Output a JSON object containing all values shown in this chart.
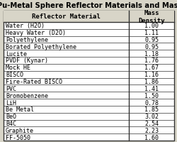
{
  "title": "st of Pu-Metal Sphere Reflector Materials and Mass Den",
  "col1_header": "Reflector Material",
  "col2_header": "Mass\nDensity",
  "rows": [
    [
      "Water (H2O)",
      "1.00"
    ],
    [
      "Heavy Water (D2O)",
      "1.11"
    ],
    [
      "Polyethylene",
      "0.95"
    ],
    [
      "Borated Polyethylene",
      "0.95"
    ],
    [
      "Lucite",
      "1.18"
    ],
    [
      "PVDF (Kynar)",
      "1.76"
    ],
    [
      "Mock HE",
      "1.67"
    ],
    [
      "BISCO",
      "1.16"
    ],
    [
      "Fire-Rated BISCO",
      "1.86"
    ],
    [
      "PVC",
      "1.41"
    ],
    [
      "Bromobenzene",
      "1.50"
    ],
    [
      "LiH",
      "0.78"
    ],
    [
      "Be Metal",
      "1.85"
    ],
    [
      "BeO",
      "3.02"
    ],
    [
      "B4C",
      "2.54"
    ],
    [
      "Graphite",
      "2.23"
    ],
    [
      "FF-5050",
      "1.60"
    ]
  ],
  "bg_color": "#d8d5c8",
  "table_bg": "#ffffff",
  "header_bg": "#d8d5c8",
  "border_color": "#333333",
  "font_family": "monospace",
  "header_fontsize": 6.5,
  "cell_fontsize": 6.0,
  "title_fontsize": 7.2,
  "title_fontweight": "bold"
}
